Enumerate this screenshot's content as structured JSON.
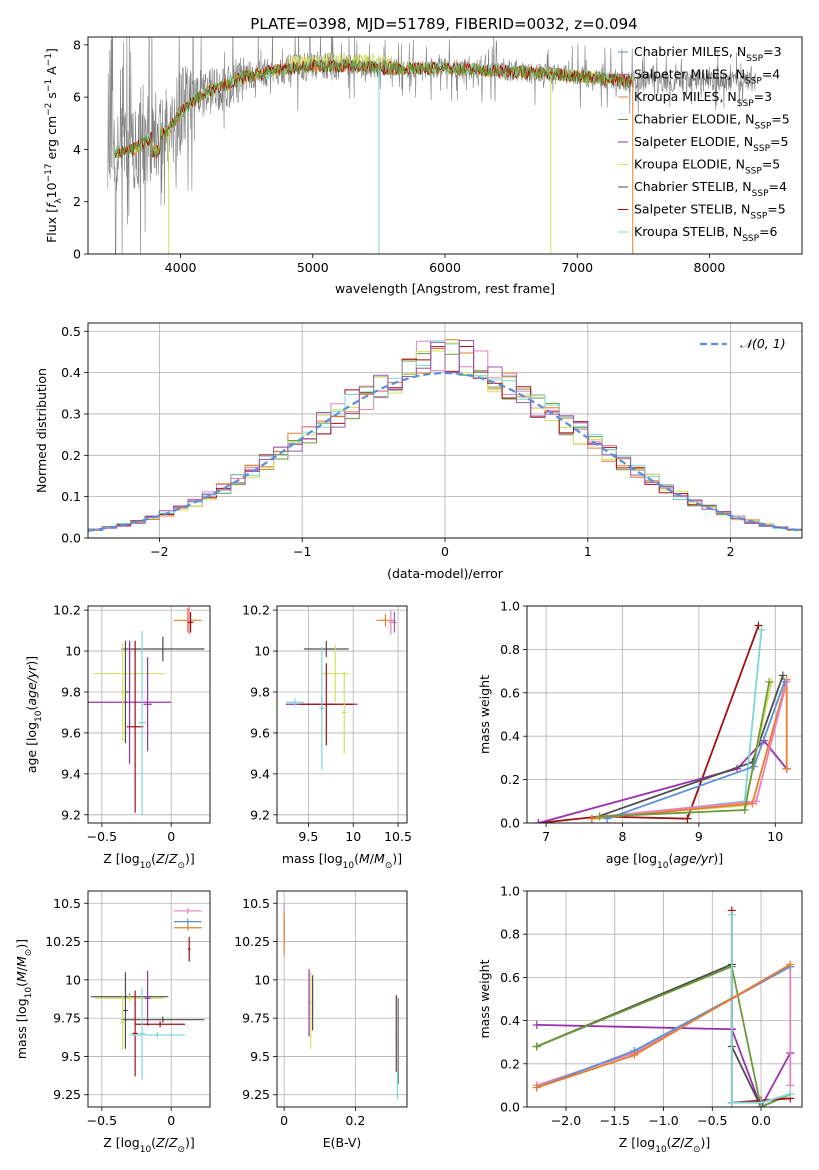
{
  "figure_title": "PLATE=0398, MJD=51789, FIBERID=0032, z=0.094",
  "colors": {
    "chabrier_miles": "#5b8fd6",
    "salpeter_miles": "#9b59b6",
    "kroupa_miles": "#e87d2a",
    "chabrier_elodie": "#6a9a3a",
    "salpeter_elodie": "#9b2fae",
    "kroupa_elodie": "#d4e060",
    "chabrier_stelib": "#4d4d4d",
    "salpeter_stelib": "#a01010",
    "kroupa_stelib": "#7fd6d6",
    "pink": "#e882b8",
    "gaussian": "#5b8fd6"
  },
  "chart_data": [
    {
      "id": "spectrum",
      "type": "line",
      "title": "PLATE=0398, MJD=51789, FIBERID=0032, z=0.094",
      "xlabel": "wavelength [Angstrom, rest frame]",
      "ylabel_parts": [
        "Flux [",
        "f",
        "λ",
        "10",
        "−17",
        " erg cm",
        "−2",
        " s",
        "−1",
        " A",
        "−1",
        "]"
      ],
      "xlim": [
        3300,
        8700
      ],
      "ylim": [
        0,
        8.3
      ],
      "xticks": [
        4000,
        5000,
        6000,
        7000,
        8000
      ],
      "yticks": [
        0,
        2,
        4,
        6,
        8
      ],
      "legend_position": "top-right",
      "legend": [
        {
          "label_main": "Chabrier MILES, N",
          "label_sub": "SSP",
          "label_tail": "=3",
          "color": "#5b8fd6"
        },
        {
          "label_main": "Salpeter MILES, N",
          "label_sub": "SSP",
          "label_tail": "=4",
          "color": "#9b59b6"
        },
        {
          "label_main": "Kroupa MILES, N",
          "label_sub": "SSP",
          "label_tail": "=3",
          "color": "#e87d2a"
        },
        {
          "label_main": "Chabrier ELODIE, N",
          "label_sub": "SSP",
          "label_tail": "=5",
          "color": "#6a9a3a"
        },
        {
          "label_main": "Salpeter ELODIE, N",
          "label_sub": "SSP",
          "label_tail": "=5",
          "color": "#9b2fae"
        },
        {
          "label_main": "Kroupa ELODIE, N",
          "label_sub": "SSP",
          "label_tail": "=5",
          "color": "#d4e060"
        },
        {
          "label_main": "Chabrier STELIB, N",
          "label_sub": "SSP",
          "label_tail": "=4",
          "color": "#4d4d4d"
        },
        {
          "label_main": "Salpeter STELIB, N",
          "label_sub": "SSP",
          "label_tail": "=5",
          "color": "#a01010"
        },
        {
          "label_main": "Kroupa STELIB, N",
          "label_sub": "SSP",
          "label_tail": "=6",
          "color": "#7fd6d6"
        }
      ],
      "continuum": {
        "x": [
          3500,
          3600,
          3700,
          3800,
          3900,
          4000,
          4100,
          4200,
          4300,
          4500,
          4700,
          5000,
          5300,
          5600,
          6000,
          6400,
          6800,
          7200,
          7400
        ],
        "y": [
          3.9,
          3.9,
          4.2,
          4.5,
          4.7,
          5.4,
          5.9,
          6.2,
          6.4,
          6.8,
          7.0,
          7.2,
          7.2,
          7.1,
          7.1,
          7.0,
          6.9,
          6.7,
          6.6
        ]
      },
      "data_range": [
        3450,
        8350
      ],
      "model_range": [
        3500,
        7420
      ]
    },
    {
      "id": "residuals",
      "type": "histogram",
      "xlabel": "(data-model)/error",
      "ylabel": "Normed distribution",
      "xlim": [
        -2.5,
        2.5
      ],
      "ylim": [
        0,
        0.52
      ],
      "xticks": [
        -2,
        -1,
        0,
        1,
        2
      ],
      "yticks": [
        0,
        0.1,
        0.2,
        0.3,
        0.4,
        0.5
      ],
      "gaussian_label": "𝒩(0, 1)",
      "legend_position": "top-right",
      "bin_width": 0.1
    },
    {
      "id": "age-vs-Z",
      "type": "errorbar",
      "xlabel_main": "Z [log",
      "xlabel_sub": "10",
      "xlabel_tail": "(Z/Z",
      "xlabel_sun": "⊙",
      "xlabel_end": ")]",
      "ylabel": "age  [log10(age/yr)]",
      "xlim": [
        -0.6,
        0.28
      ],
      "ylim": [
        9.16,
        10.22
      ],
      "xticks": [
        -0.5,
        0.0
      ],
      "yticks": [
        9.2,
        9.4,
        9.6,
        9.8,
        10.0,
        10.2
      ],
      "points": [
        {
          "x": 0.12,
          "y": 10.15,
          "xerr": 0.1,
          "yerr": 0.06,
          "color": "#e87d2a"
        },
        {
          "x": 0.13,
          "y": 10.15,
          "xerr": 0.02,
          "yerr": 0.07,
          "color": "#e882b8"
        },
        {
          "x": 0.14,
          "y": 10.14,
          "xerr": 0.02,
          "yerr": 0.05,
          "color": "#a01010"
        },
        {
          "x": -0.06,
          "y": 10.01,
          "xerr": 0.3,
          "yerr": 0.06,
          "color": "#4d4d4d"
        },
        {
          "x": -0.3,
          "y": 9.89,
          "xerr": 0.26,
          "yerr": 0.16,
          "color": "#d4e060"
        },
        {
          "x": -0.3,
          "y": 9.75,
          "xerr": 0.3,
          "yerr": 0.3,
          "color": "#9b2fae"
        },
        {
          "x": -0.26,
          "y": 9.63,
          "xerr": 0.06,
          "yerr": 0.42,
          "color": "#a01010"
        },
        {
          "x": -0.21,
          "y": 9.65,
          "xerr": 0.03,
          "yerr": 0.45,
          "color": "#7fd6d6"
        },
        {
          "x": -0.33,
          "y": 9.8,
          "xerr": 0.03,
          "yerr": 0.25,
          "color": "#4d4d4d"
        },
        {
          "x": -0.17,
          "y": 9.74,
          "xerr": 0.03,
          "yerr": 0.23,
          "color": "#9b2fae"
        },
        {
          "x": -0.35,
          "y": 9.8,
          "xerr": 0.02,
          "yerr": 0.24,
          "color": "#d4e060"
        }
      ]
    },
    {
      "id": "age-vs-mass",
      "type": "errorbar",
      "xlabel_main": "mass [log",
      "xlabel_sub": "10",
      "xlabel_tail": "(M/M",
      "xlabel_sun": "⊙",
      "xlabel_end": ")]",
      "xlim": [
        9.15,
        10.6
      ],
      "ylim": [
        9.16,
        10.22
      ],
      "xticks": [
        9.5,
        10.0,
        10.5
      ],
      "yticks": [
        9.2,
        9.4,
        9.6,
        9.8,
        10.0,
        10.2
      ],
      "points": [
        {
          "x": 10.36,
          "y": 10.15,
          "xerr": 0.1,
          "yerr": 0.03,
          "color": "#e87d2a"
        },
        {
          "x": 10.42,
          "y": 10.14,
          "xerr": 0.02,
          "yerr": 0.06,
          "color": "#e882b8"
        },
        {
          "x": 10.46,
          "y": 10.14,
          "xerr": 0.02,
          "yerr": 0.05,
          "color": "#9b59b6"
        },
        {
          "x": 9.7,
          "y": 10.01,
          "xerr": 0.25,
          "yerr": 0.04,
          "color": "#4d4d4d"
        },
        {
          "x": 9.8,
          "y": 9.89,
          "xerr": 0.15,
          "yerr": 0.14,
          "color": "#d4e060"
        },
        {
          "x": 9.65,
          "y": 9.74,
          "xerr": 0.4,
          "yerr": 0.03,
          "color": "#9b2fae"
        },
        {
          "x": 9.7,
          "y": 9.74,
          "xerr": 0.3,
          "yerr": 0.2,
          "color": "#a01010"
        },
        {
          "x": 9.65,
          "y": 9.72,
          "xerr": 0.03,
          "yerr": 0.3,
          "color": "#7fd6d6"
        },
        {
          "x": 9.35,
          "y": 9.75,
          "xerr": 0.1,
          "yerr": 0.02,
          "color": "#7fd6d6"
        },
        {
          "x": 9.9,
          "y": 9.7,
          "xerr": 0.03,
          "yerr": 0.2,
          "color": "#d4e060"
        }
      ]
    },
    {
      "id": "massweight-vs-age",
      "type": "line",
      "xlabel_main": "age  [log",
      "xlabel_sub": "10",
      "xlabel_tail": "(age/yr)]",
      "ylabel": "mass weight",
      "xlim": [
        6.75,
        10.35
      ],
      "ylim": [
        0,
        1.0
      ],
      "xticks": [
        7,
        8,
        9,
        10
      ],
      "yticks": [
        0.0,
        0.2,
        0.4,
        0.6,
        0.8,
        1.0
      ],
      "series": [
        {
          "color": "#a01010",
          "x": [
            6.9,
            7.7,
            8.85,
            9.78
          ],
          "y": [
            0.0,
            0.03,
            0.02,
            0.91
          ]
        },
        {
          "color": "#9b2fae",
          "x": [
            6.9,
            9.5,
            9.85,
            10.15
          ],
          "y": [
            0.0,
            0.25,
            0.38,
            0.25
          ]
        },
        {
          "color": "#4d4d4d",
          "x": [
            7.6,
            9.7,
            10.1
          ],
          "y": [
            0.02,
            0.28,
            0.68
          ]
        },
        {
          "color": "#d4e060",
          "x": [
            7.7,
            9.6,
            9.95
          ],
          "y": [
            0.03,
            0.08,
            0.65
          ]
        },
        {
          "color": "#7fd6d6",
          "x": [
            7.6,
            9.6,
            9.82
          ],
          "y": [
            0.02,
            0.1,
            0.89
          ]
        },
        {
          "color": "#e87d2a",
          "x": [
            7.6,
            9.7,
            10.15,
            10.15
          ],
          "y": [
            0.02,
            0.09,
            0.66,
            0.25
          ]
        },
        {
          "color": "#e882b8",
          "x": [
            7.7,
            9.75,
            10.15
          ],
          "y": [
            0.03,
            0.1,
            0.65
          ]
        },
        {
          "color": "#5b8fd6",
          "x": [
            7.8,
            9.72,
            10.12
          ],
          "y": [
            0.02,
            0.26,
            0.65
          ]
        },
        {
          "color": "#6a9a3a",
          "x": [
            7.7,
            9.6,
            9.92
          ],
          "y": [
            0.03,
            0.06,
            0.65
          ]
        }
      ]
    },
    {
      "id": "mass-vs-Z",
      "type": "errorbar",
      "xlabel_main": "Z [log",
      "xlabel_sub": "10",
      "xlabel_tail": "(Z/Z",
      "xlabel_sun": "⊙",
      "xlabel_end": ")]",
      "ylabel": "mass [log10(M/M⊙)]",
      "xlim": [
        -0.6,
        0.28
      ],
      "ylim": [
        9.17,
        10.58
      ],
      "xticks": [
        -0.5,
        0.0
      ],
      "yticks": [
        9.25,
        9.5,
        9.75,
        10.0,
        10.25,
        10.5
      ],
      "points": [
        {
          "x": 0.12,
          "y": 10.45,
          "xerr": 0.1,
          "yerr": 0.02,
          "color": "#e882b8"
        },
        {
          "x": 0.12,
          "y": 10.38,
          "xerr": 0.1,
          "yerr": 0.02,
          "color": "#5b8fd6"
        },
        {
          "x": 0.12,
          "y": 10.34,
          "xerr": 0.1,
          "yerr": 0.02,
          "color": "#e87d2a"
        },
        {
          "x": 0.13,
          "y": 10.2,
          "xerr": 0.01,
          "yerr": 0.08,
          "color": "#a01010"
        },
        {
          "x": -0.3,
          "y": 9.89,
          "xerr": 0.28,
          "yerr": 0.02,
          "color": "#4d4d4d"
        },
        {
          "x": -0.3,
          "y": 9.88,
          "xerr": 0.25,
          "yerr": 0.02,
          "color": "#d4e060"
        },
        {
          "x": -0.33,
          "y": 9.8,
          "xerr": 0.02,
          "yerr": 0.25,
          "color": "#4d4d4d"
        },
        {
          "x": -0.17,
          "y": 9.88,
          "xerr": 0.02,
          "yerr": 0.18,
          "color": "#9b2fae"
        },
        {
          "x": -0.06,
          "y": 9.74,
          "xerr": 0.3,
          "yerr": 0.02,
          "color": "#4d4d4d"
        },
        {
          "x": -0.08,
          "y": 9.71,
          "xerr": 0.18,
          "yerr": 0.02,
          "color": "#a01010"
        },
        {
          "x": -0.26,
          "y": 9.65,
          "xerr": 0.02,
          "yerr": 0.28,
          "color": "#a01010"
        },
        {
          "x": -0.1,
          "y": 9.64,
          "xerr": 0.2,
          "yerr": 0.02,
          "color": "#7fd6d6"
        },
        {
          "x": -0.21,
          "y": 9.65,
          "xerr": 0.02,
          "yerr": 0.3,
          "color": "#7fd6d6"
        },
        {
          "x": -0.35,
          "y": 9.72,
          "xerr": 0.02,
          "yerr": 0.18,
          "color": "#d4e060"
        }
      ]
    },
    {
      "id": "mass-vs-ebv",
      "type": "errorbar",
      "xlabel": "E(B-V)",
      "xlim": [
        -0.02,
        0.345
      ],
      "ylim": [
        9.17,
        10.58
      ],
      "xticks": [
        0.0,
        0.2
      ],
      "yticks": [
        9.25,
        9.5,
        9.75,
        10.0,
        10.25,
        10.5
      ],
      "points": [
        {
          "x": 0.0,
          "y": 10.35,
          "xerr": 0.002,
          "yerr": 0.15,
          "color": "#e882b8"
        },
        {
          "x": 0.0,
          "y": 10.3,
          "xerr": 0.002,
          "yerr": 0.14,
          "color": "#e87d2a"
        },
        {
          "x": 0.07,
          "y": 9.85,
          "xerr": 0.002,
          "yerr": 0.22,
          "color": "#9b2fae"
        },
        {
          "x": 0.075,
          "y": 9.8,
          "xerr": 0.002,
          "yerr": 0.25,
          "color": "#d4e060"
        },
        {
          "x": 0.08,
          "y": 9.85,
          "xerr": 0.002,
          "yerr": 0.18,
          "color": "#4d4d4d"
        },
        {
          "x": 0.315,
          "y": 9.65,
          "xerr": 0.002,
          "yerr": 0.25,
          "color": "#a01010"
        },
        {
          "x": 0.32,
          "y": 9.6,
          "xerr": 0.002,
          "yerr": 0.28,
          "color": "#4d4d4d"
        },
        {
          "x": 0.318,
          "y": 9.55,
          "xerr": 0.002,
          "yerr": 0.33,
          "color": "#7fd6d6"
        }
      ]
    },
    {
      "id": "massweight-vs-Z",
      "type": "line",
      "xlabel_main": "Z [log",
      "xlabel_sub": "10",
      "xlabel_tail": "(Z/Z",
      "xlabel_sun": "⊙",
      "xlabel_end": ")]",
      "ylabel": "mass weight",
      "xlim": [
        -2.4,
        0.42
      ],
      "ylim": [
        0,
        1.0
      ],
      "xticks": [
        -2.0,
        -1.5,
        -1.0,
        -0.5,
        0.0
      ],
      "yticks": [
        0.0,
        0.2,
        0.4,
        0.6,
        0.8,
        1.0
      ],
      "series": [
        {
          "color": "#9b2fae",
          "x": [
            -2.3,
            -0.3,
            -0.3,
            -0.3,
            0.0,
            0.3
          ],
          "y": [
            0.38,
            0.36,
            0.36,
            0.36,
            0.0,
            0.25
          ]
        },
        {
          "color": "#d4e060",
          "x": [
            -2.3,
            -0.3
          ],
          "y": [
            0.28,
            0.66
          ]
        },
        {
          "color": "#4d4d4d",
          "x": [
            -2.3,
            -0.3,
            -0.3,
            0.0,
            0.3
          ],
          "y": [
            0.28,
            0.66,
            0.28,
            0.0,
            0.06
          ]
        },
        {
          "color": "#6a9a3a",
          "x": [
            -2.3,
            -0.3,
            0.0,
            0.3
          ],
          "y": [
            0.28,
            0.65,
            0.0,
            0.06
          ]
        },
        {
          "color": "#a01010",
          "x": [
            -0.3,
            -0.3,
            0.0,
            0.3
          ],
          "y": [
            0.91,
            0.02,
            0.03,
            0.04
          ]
        },
        {
          "color": "#7fd6d6",
          "x": [
            -0.3,
            -0.3,
            0.0,
            0.3
          ],
          "y": [
            0.89,
            0.02,
            0.02,
            0.06
          ]
        },
        {
          "color": "#e882b8",
          "x": [
            -2.3,
            -1.3,
            0.3,
            0.3
          ],
          "y": [
            0.1,
            0.25,
            0.65,
            0.1
          ]
        },
        {
          "color": "#5b8fd6",
          "x": [
            -2.3,
            -1.3,
            0.3
          ],
          "y": [
            0.09,
            0.26,
            0.65
          ]
        },
        {
          "color": "#e87d2a",
          "x": [
            -2.3,
            -1.3,
            0.3
          ],
          "y": [
            0.09,
            0.24,
            0.66
          ]
        }
      ]
    }
  ]
}
